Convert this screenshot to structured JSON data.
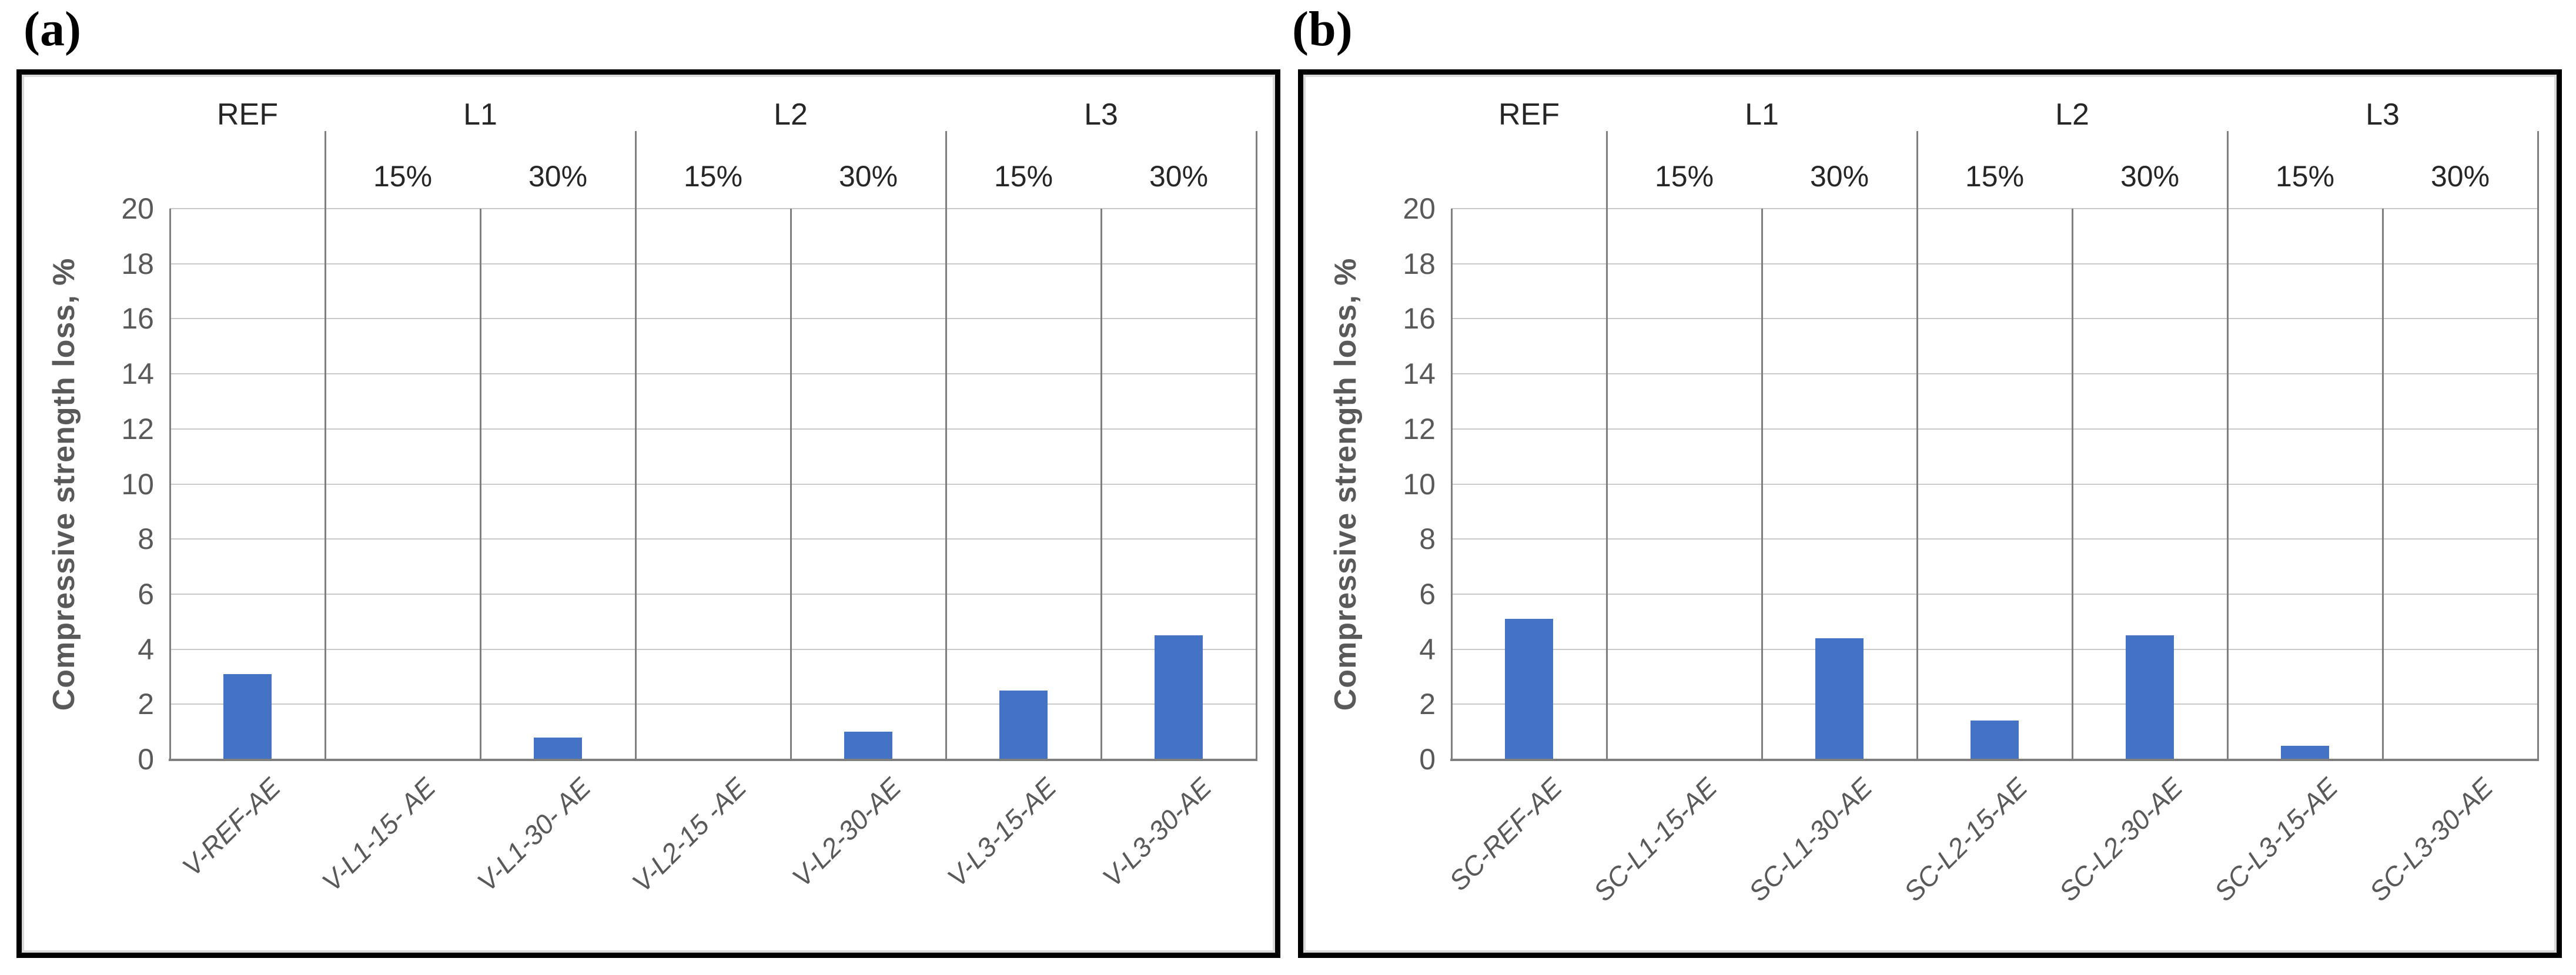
{
  "figure": {
    "panels": [
      {
        "tag": "(a)"
      },
      {
        "tag": "(b)"
      }
    ]
  },
  "colors": {
    "bar_fill": "#4472C4",
    "gridline": "#C9C9C9",
    "axis_line": "#7F7F7F",
    "separator_line": "#7F7F7F",
    "tick_label_text": "#595959",
    "category_label_text": "#595959",
    "header_text": "#262626",
    "axis_title_text": "#595959",
    "panel_border": "#000000",
    "background": "#FFFFFF"
  },
  "chart_data": [
    {
      "type": "bar",
      "panel": "(a)",
      "title": "",
      "xlabel": "",
      "ylabel": "Compressive strength loss, %",
      "ylim": [
        0,
        20
      ],
      "ytick_step": 2,
      "ytick_labels": [
        "0",
        "2",
        "4",
        "6",
        "8",
        "10",
        "12",
        "14",
        "16",
        "18",
        "20"
      ],
      "grid": true,
      "legend": "none",
      "group_headers": [
        {
          "label": "REF",
          "span": 1
        },
        {
          "label": "L1",
          "span": 2
        },
        {
          "label": "L2",
          "span": 2
        },
        {
          "label": "L3",
          "span": 2
        }
      ],
      "sub_headers": [
        {
          "col": 1,
          "label": "15%"
        },
        {
          "col": 2,
          "label": "30%"
        },
        {
          "col": 3,
          "label": "15%"
        },
        {
          "col": 4,
          "label": "30%"
        },
        {
          "col": 5,
          "label": "15%"
        },
        {
          "col": 6,
          "label": "30%"
        }
      ],
      "categories": [
        "V-REF-AE",
        "V-L1-15- AE",
        "V-L1-30- AE",
        "V-L2-15 -AE",
        "V-L2-30-AE",
        "V-L3-15-AE",
        "V-L3-30-AE"
      ],
      "values": [
        3.1,
        0,
        0.8,
        0,
        1.0,
        2.5,
        4.5
      ]
    },
    {
      "type": "bar",
      "panel": "(b)",
      "title": "",
      "xlabel": "",
      "ylabel": "Compressive strength loss, %",
      "ylim": [
        0,
        20
      ],
      "ytick_step": 2,
      "ytick_labels": [
        "0",
        "2",
        "4",
        "6",
        "8",
        "10",
        "12",
        "14",
        "16",
        "18",
        "20"
      ],
      "grid": true,
      "legend": "none",
      "group_headers": [
        {
          "label": "REF",
          "span": 1
        },
        {
          "label": "L1",
          "span": 2
        },
        {
          "label": "L2",
          "span": 2
        },
        {
          "label": "L3",
          "span": 2
        }
      ],
      "sub_headers": [
        {
          "col": 1,
          "label": "15%"
        },
        {
          "col": 2,
          "label": "30%"
        },
        {
          "col": 3,
          "label": "15%"
        },
        {
          "col": 4,
          "label": "30%"
        },
        {
          "col": 5,
          "label": "15%"
        },
        {
          "col": 6,
          "label": "30%"
        }
      ],
      "categories": [
        "SC-REF-AE",
        "SC-L1-15-AE",
        "SC-L1-30-AE",
        "SC-L2-15-AE",
        "SC-L2-30-AE",
        "SC-L3-15-AE",
        "SC-L3-30-AE"
      ],
      "values": [
        5.1,
        0,
        4.4,
        1.4,
        4.5,
        0.5,
        0
      ]
    }
  ]
}
